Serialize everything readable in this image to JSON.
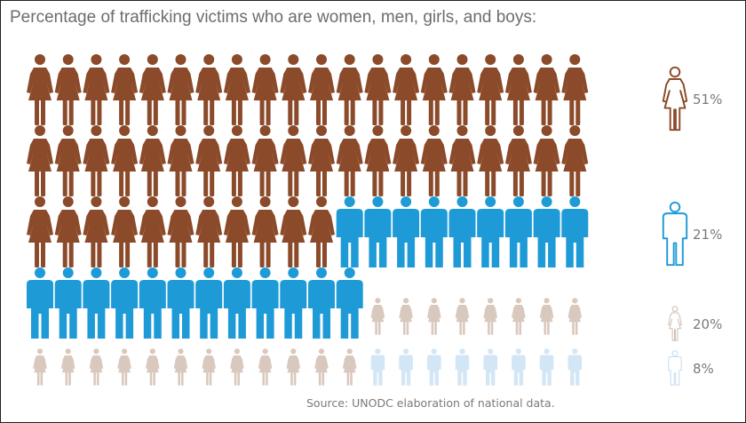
{
  "title": "Percentage of trafficking victims who are women, men, girls, and boys:",
  "source": "Source: UNODC elaboration of national data.",
  "chart_data": {
    "type": "pictogram",
    "unit_count": 100,
    "series": [
      {
        "name": "women",
        "value": 51,
        "label": "51%",
        "icon": "woman-icon",
        "color": "#8b4a2a"
      },
      {
        "name": "men",
        "value": 21,
        "label": "21%",
        "icon": "man-icon",
        "color": "#1e9bd7"
      },
      {
        "name": "girls",
        "value": 20,
        "label": "20%",
        "icon": "girl-icon",
        "color": "#d9c8bd"
      },
      {
        "name": "boys",
        "value": 8,
        "label": "8%",
        "icon": "boy-icon",
        "color": "#d3e6f6"
      }
    ]
  }
}
